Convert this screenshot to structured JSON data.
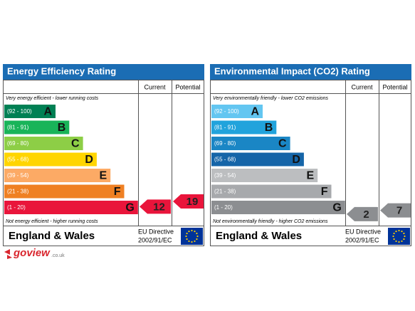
{
  "panels": [
    {
      "title": "Energy Efficiency Rating",
      "columns": [
        "Current",
        "Potential"
      ],
      "top_note": "Very energy efficient - lower running costs",
      "bottom_note": "Not energy efficient - higher running costs",
      "bands": [
        {
          "range": "(92 - 100)",
          "letter": "A",
          "color": "#008054"
        },
        {
          "range": "(81 - 91)",
          "letter": "B",
          "color": "#19b459"
        },
        {
          "range": "(69 - 80)",
          "letter": "C",
          "color": "#8dce46"
        },
        {
          "range": "(55 - 68)",
          "letter": "D",
          "color": "#ffd500"
        },
        {
          "range": "(39 - 54)",
          "letter": "E",
          "color": "#fcaa65"
        },
        {
          "range": "(21 - 38)",
          "letter": "F",
          "color": "#ef8023"
        },
        {
          "range": "(1 - 20)",
          "letter": "G",
          "color": "#e9153b"
        }
      ],
      "current": 12,
      "potential": 19,
      "arrow_color": "#e9153b",
      "footer": "England & Wales",
      "directive": [
        "EU Directive",
        "2002/91/EC"
      ]
    },
    {
      "title": "Environmental Impact (CO2) Rating",
      "columns": [
        "Current",
        "Potential"
      ],
      "top_note": "Very environmentally friendly - lower CO2 emissions",
      "bottom_note": "Not environmentally friendly - higher CO2 emissions",
      "bands": [
        {
          "range": "(92 - 100)",
          "letter": "A",
          "color": "#63c6f1"
        },
        {
          "range": "(81 - 91)",
          "letter": "B",
          "color": "#21a3dc"
        },
        {
          "range": "(69 - 80)",
          "letter": "C",
          "color": "#1a86c5"
        },
        {
          "range": "(55 - 68)",
          "letter": "D",
          "color": "#1565a8"
        },
        {
          "range": "(39 - 54)",
          "letter": "E",
          "color": "#bcbec0"
        },
        {
          "range": "(21 - 38)",
          "letter": "F",
          "color": "#a7a9ac"
        },
        {
          "range": "(1 - 20)",
          "letter": "G",
          "color": "#8c8e91"
        }
      ],
      "current": 2,
      "potential": 7,
      "arrow_color": "#8c8e91",
      "footer": "England & Wales",
      "directive": [
        "EU Directive",
        "2002/91/EC"
      ]
    }
  ],
  "logo": "goview",
  "logo_suffix": ".co.uk"
}
